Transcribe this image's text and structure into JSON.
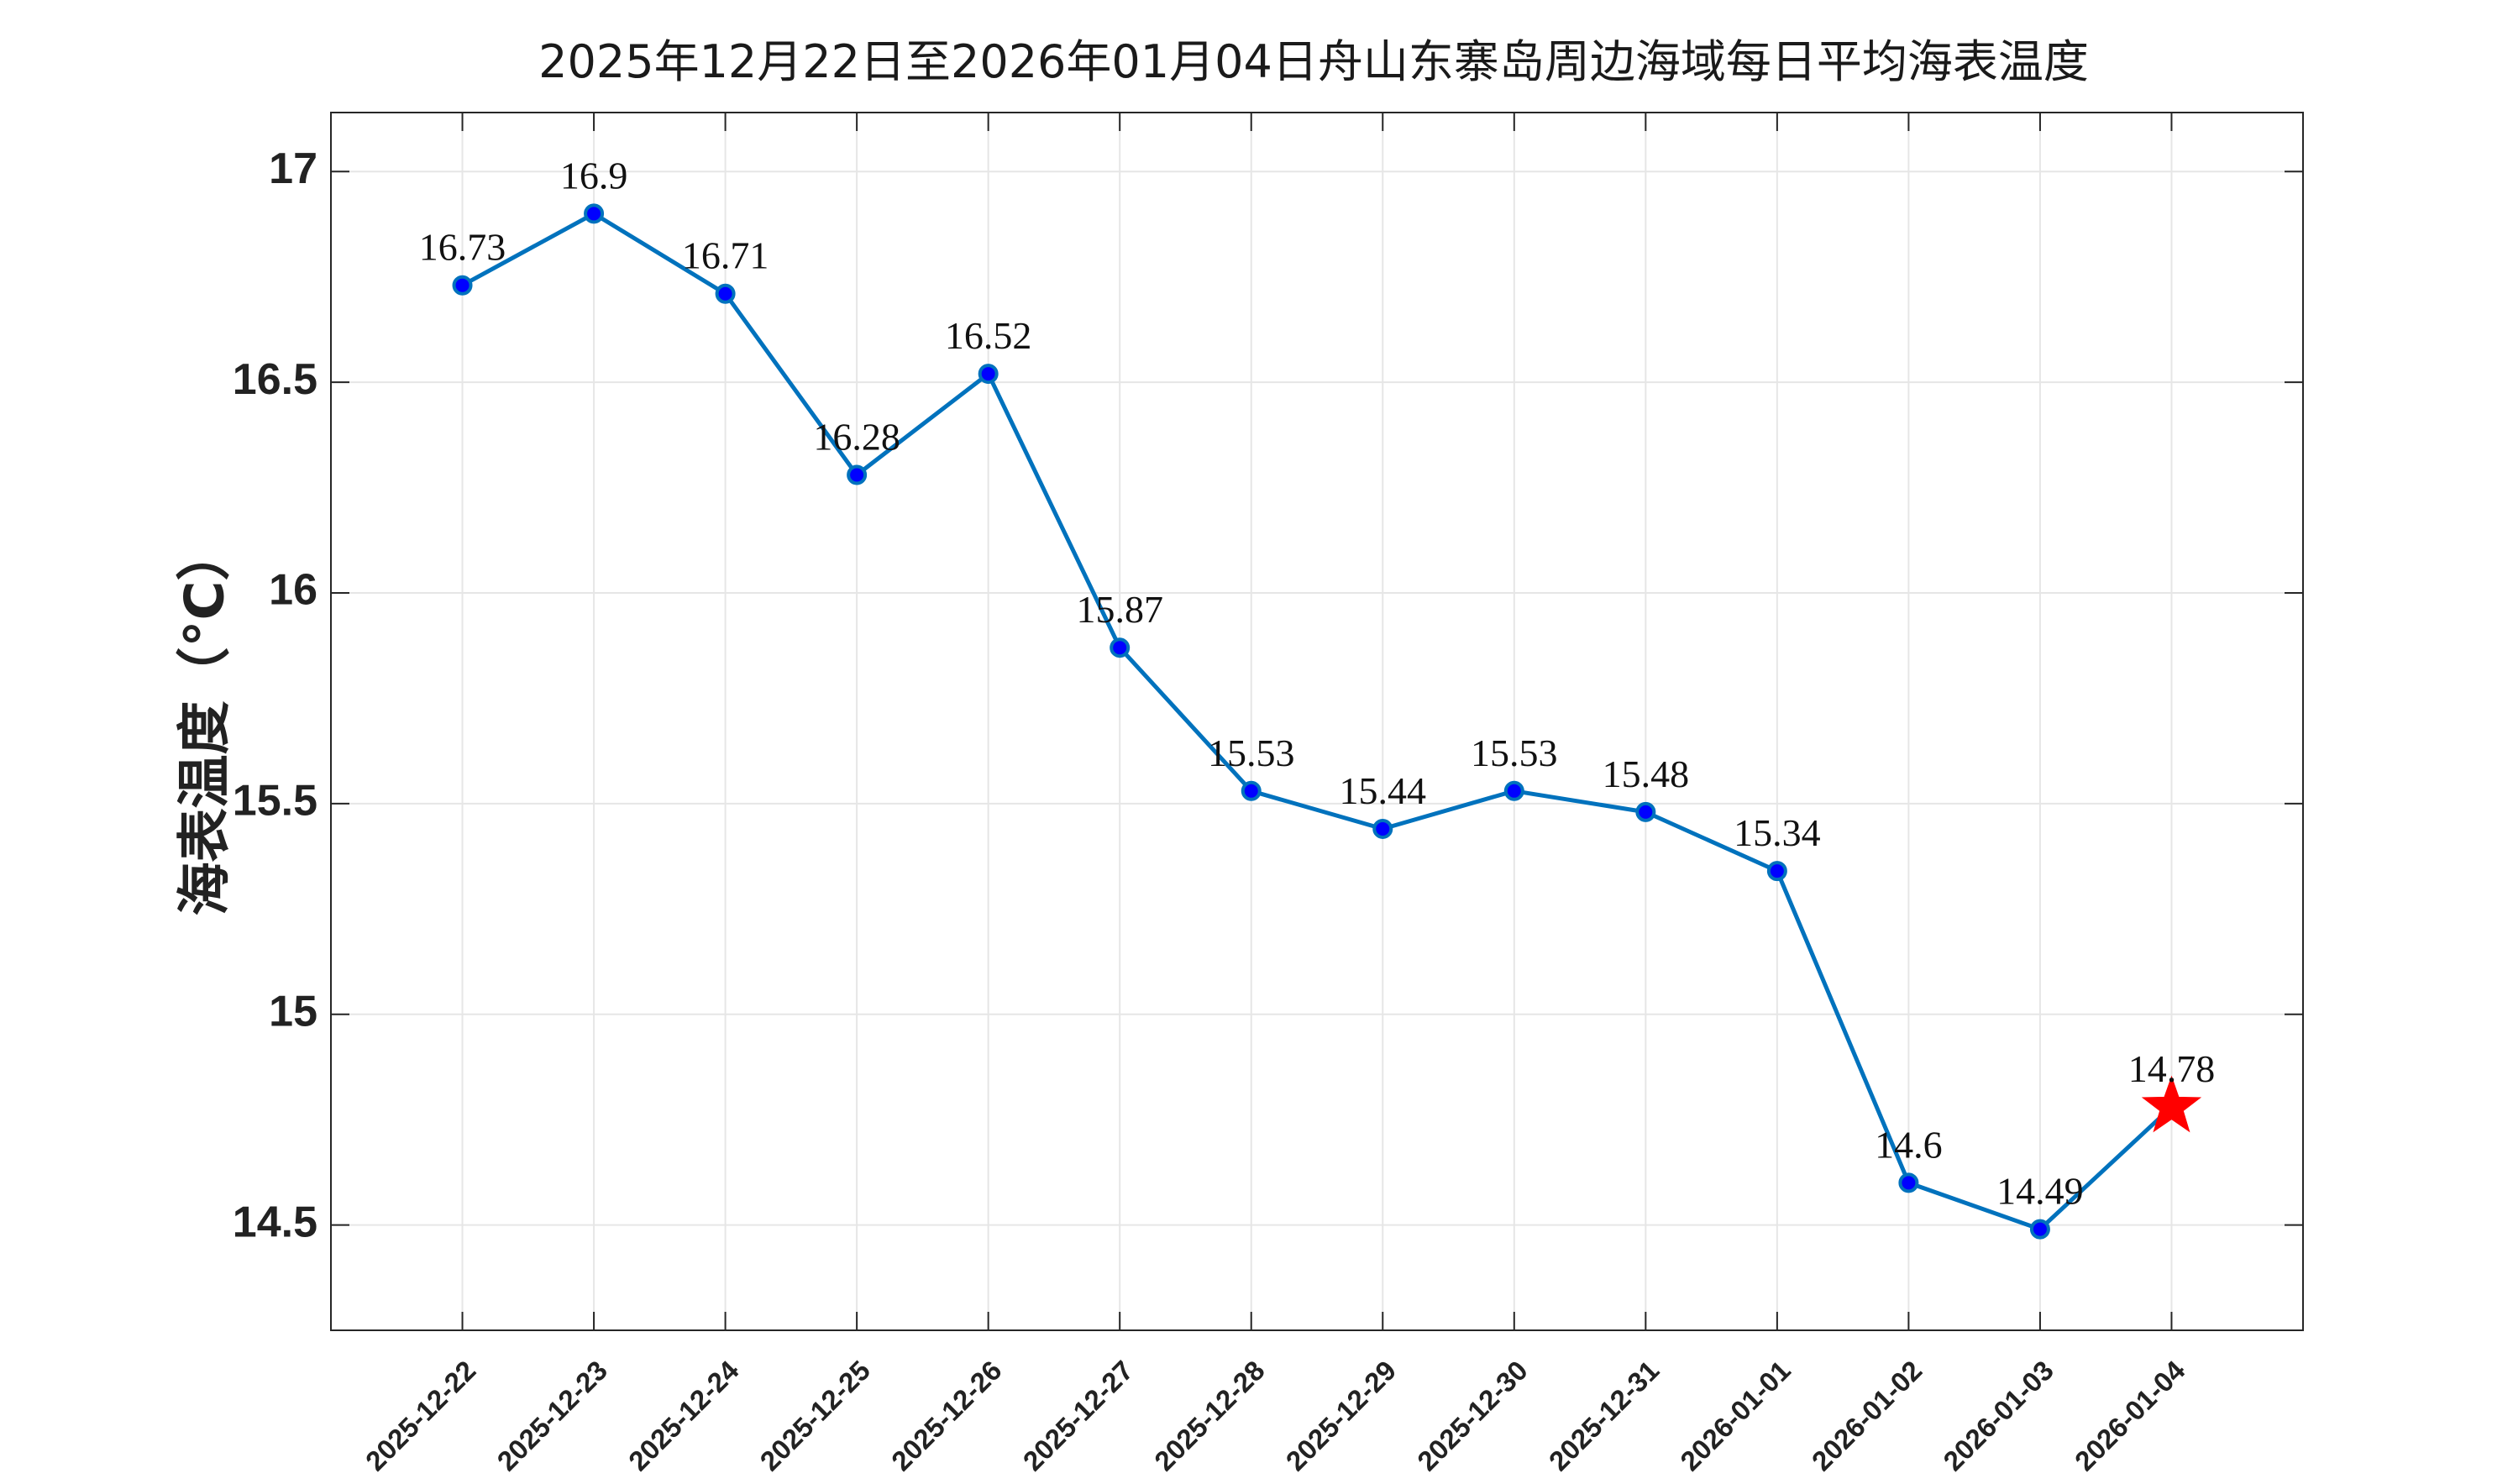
{
  "chart_data": {
    "type": "line",
    "title": "2025年12月22日至2026年01月04日舟山东寨岛周边海域每日平均海表温度",
    "xlabel": "",
    "ylabel": "海表温度（°C）",
    "categories": [
      "2025-12-22",
      "2025-12-23",
      "2025-12-24",
      "2025-12-25",
      "2025-12-26",
      "2025-12-27",
      "2025-12-28",
      "2025-12-29",
      "2025-12-30",
      "2025-12-31",
      "2026-01-01",
      "2026-01-02",
      "2026-01-03",
      "2026-01-04"
    ],
    "series": [
      {
        "values": [
          16.73,
          16.9,
          16.71,
          16.28,
          16.52,
          15.87,
          15.53,
          15.44,
          15.53,
          15.48,
          15.34,
          14.6,
          14.49,
          14.78
        ],
        "labels": [
          "16.73",
          "16.9",
          "16.71",
          "16.28",
          "16.52",
          "15.87",
          "15.53",
          "15.44",
          "15.53",
          "15.48",
          "15.34",
          "14.6",
          "14.49",
          "14.78"
        ],
        "color": "#0072BD",
        "marker_color": "#0000FF",
        "highlight_last": true,
        "highlight_color": "#FF0000",
        "highlight_marker": "star"
      }
    ],
    "yticks": [
      14.5,
      15,
      15.5,
      16,
      16.5,
      17
    ],
    "ytick_labels": [
      "14.5",
      "15",
      "15.5",
      "16",
      "16.5",
      "17"
    ],
    "ylim": [
      14.25,
      17.14
    ],
    "xlim": [
      -1,
      14
    ],
    "grid": true,
    "legend": "none",
    "colors": {
      "line": "#0072BD",
      "marker_fill": "#0000FF",
      "star": "#FF0000",
      "grid": "#e6e6e6",
      "axes": "#262626"
    }
  }
}
